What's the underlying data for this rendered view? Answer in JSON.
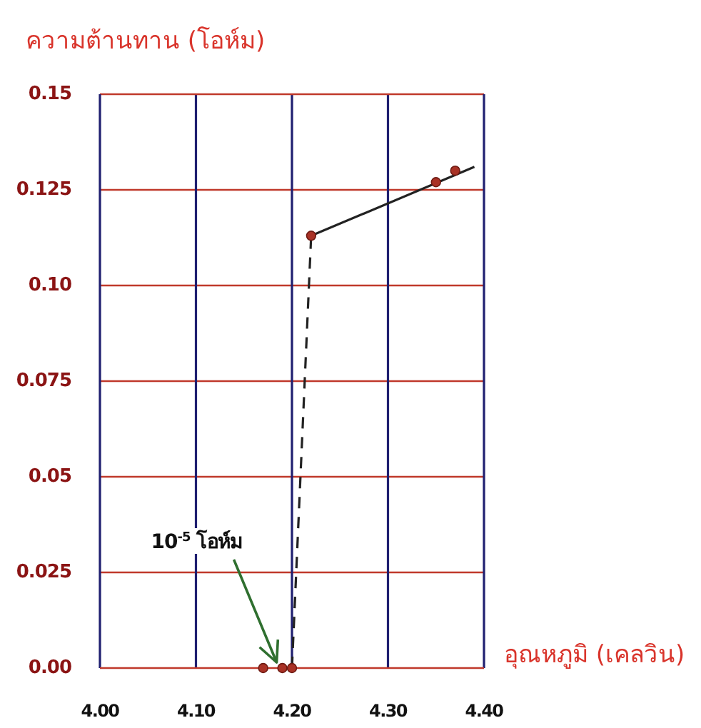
{
  "chart_data": {
    "type": "line",
    "xlabel": "อุณหภูมิ (เคลวิน)",
    "ylabel": "ความต้านทาน (โอห์ม)",
    "xlim": [
      4.0,
      4.4
    ],
    "ylim": [
      0,
      0.15
    ],
    "xticks": [
      {
        "value": 4.0,
        "label": "4.00"
      },
      {
        "value": 4.1,
        "label": "4.10"
      },
      {
        "value": 4.2,
        "label": "4.20"
      },
      {
        "value": 4.3,
        "label": "4.30"
      },
      {
        "value": 4.4,
        "label": "4.40"
      }
    ],
    "yticks": [
      {
        "value": 0,
        "label": "0.00"
      },
      0.025,
      0.05,
      0.075,
      {
        "value": 0.1,
        "label": "0.10"
      },
      0.125,
      0.15
    ],
    "grid": true,
    "series": [
      {
        "type": "line",
        "line_style": "dashed",
        "marker": "none",
        "color": "#222222",
        "x": [
          4.2,
          4.22
        ],
        "values": [
          0,
          0.113
        ]
      },
      {
        "type": "line",
        "line_style": "solid",
        "marker": "none",
        "color": "#222222",
        "x": [
          4.22,
          4.39
        ],
        "values": [
          0.113,
          0.131
        ]
      },
      {
        "type": "scatter",
        "marker": "circle",
        "color": "#a93226",
        "x": [
          4.17,
          4.19,
          4.2,
          4.22,
          4.35,
          4.37
        ],
        "values": [
          0,
          0,
          0,
          0.113,
          0.127,
          0.13
        ]
      }
    ],
    "annotations": [
      {
        "text": "10$^{-5}$ โอห์ม",
        "x": 4.19,
        "y": 0
      }
    ]
  }
}
